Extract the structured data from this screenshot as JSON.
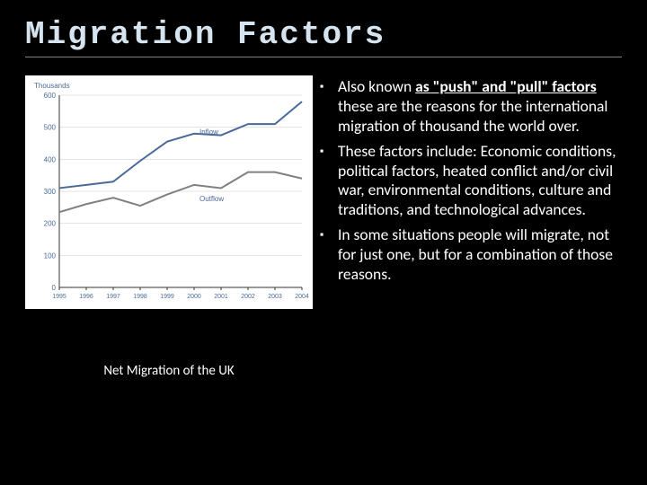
{
  "title": "Migration Factors",
  "chart": {
    "type": "line",
    "y_axis_label": "Thousands",
    "y_axis_label_fontsize": 8,
    "y_axis_label_color": "#4a6a9a",
    "x_labels": [
      "1995",
      "1996",
      "1997",
      "1998",
      "1999",
      "2000",
      "2001",
      "2002",
      "2003",
      "2004"
    ],
    "x_label_fontsize": 7,
    "y_ticks": [
      0,
      100,
      200,
      300,
      400,
      500,
      600
    ],
    "y_tick_fontsize": 8,
    "ylim": [
      0,
      600
    ],
    "grid_color": "#c8c8c8",
    "axis_color": "#333333",
    "background_color": "#ffffff",
    "series": [
      {
        "name": "Inflow",
        "label_on_chart": "Inflow",
        "color": "#4a6a9a",
        "line_width": 2,
        "values": [
          310,
          320,
          330,
          395,
          455,
          480,
          475,
          510,
          510,
          580
        ]
      },
      {
        "name": "Outflow",
        "label_on_chart": "Outflow",
        "color": "#808080",
        "line_width": 2,
        "values": [
          235,
          260,
          280,
          255,
          290,
          320,
          310,
          360,
          360,
          340
        ]
      }
    ],
    "series_label_fontsize": 8,
    "series_label_color": "#4a6a9a"
  },
  "chart_caption": "Net Migration of the UK",
  "bullets": [
    {
      "segments": [
        {
          "text": "Also known ",
          "bold": false,
          "underline": false
        },
        {
          "text": "as \"push\" and \"pull\" factors",
          "bold": true,
          "underline": true
        },
        {
          "text": " these are the reasons for the international migration of thousand the world over.",
          "bold": false,
          "underline": false
        }
      ]
    },
    {
      "segments": [
        {
          "text": "These factors include: Economic conditions, political factors, heated conflict and/or civil war, environmental conditions, culture and traditions, and technological advances.",
          "bold": false,
          "underline": false
        }
      ]
    },
    {
      "segments": [
        {
          "text": "In some situations people will migrate, not for just one, but for a combination of those reasons.",
          "bold": false,
          "underline": false
        }
      ]
    }
  ],
  "bullet_marker": "▪",
  "colors": {
    "slide_bg": "#000000",
    "title_color": "#d6e4f0",
    "text_color": "#ffffff",
    "underline_color": "#808080"
  }
}
